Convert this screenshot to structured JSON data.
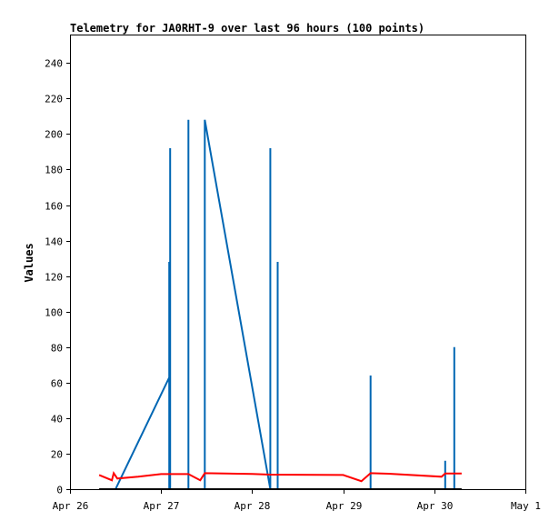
{
  "chart_data": {
    "type": "line",
    "title": "Telemetry for JA0RHT-9 over last 96 hours (100 points)",
    "xlabel": "",
    "ylabel": "Values",
    "ylim": [
      0,
      256
    ],
    "y_ticks": [
      0,
      20,
      40,
      60,
      80,
      100,
      120,
      140,
      160,
      180,
      200,
      220,
      240
    ],
    "x_ticks": [
      {
        "label": "Apr 26",
        "day": 0
      },
      {
        "label": "Apr 27",
        "day": 1
      },
      {
        "label": "Apr 28",
        "day": 2
      },
      {
        "label": "Apr 29",
        "day": 3
      },
      {
        "label": "Apr 30",
        "day": 4
      },
      {
        "label": "May 1",
        "day": 5
      }
    ],
    "xlim_days": [
      0,
      5
    ],
    "grid": false,
    "legend": "none",
    "series": [
      {
        "color": "#0066b3",
        "points": [
          [
            0.5,
            0
          ],
          [
            1.1,
            64
          ],
          [
            1.1,
            192
          ],
          [
            1.1,
            0
          ],
          [
            1.09,
            128
          ],
          [
            1.09,
            0
          ],
          [
            1.3,
            0
          ],
          [
            1.3,
            208
          ],
          [
            1.3,
            0
          ],
          [
            1.48,
            0
          ],
          [
            1.48,
            208
          ],
          [
            2.2,
            0
          ],
          [
            2.2,
            192
          ],
          [
            2.2,
            0
          ],
          [
            2.28,
            0
          ],
          [
            2.28,
            128
          ],
          [
            2.28,
            0
          ],
          [
            3.3,
            0
          ],
          [
            3.3,
            64
          ],
          [
            3.3,
            0
          ],
          [
            4.12,
            0
          ],
          [
            4.12,
            16
          ],
          [
            4.12,
            0
          ],
          [
            4.22,
            0
          ],
          [
            4.22,
            80
          ],
          [
            4.22,
            0
          ]
        ]
      },
      {
        "color": "#ff0000",
        "points": [
          [
            0.32,
            8
          ],
          [
            0.46,
            5
          ],
          [
            0.48,
            9
          ],
          [
            0.52,
            6
          ],
          [
            0.75,
            7
          ],
          [
            1.0,
            8.5
          ],
          [
            1.3,
            8.5
          ],
          [
            1.43,
            5
          ],
          [
            1.48,
            9
          ],
          [
            2.0,
            8.6
          ],
          [
            2.2,
            8.2
          ],
          [
            3.0,
            8.0
          ],
          [
            3.2,
            4.5
          ],
          [
            3.3,
            9
          ],
          [
            3.5,
            8.7
          ],
          [
            4.08,
            7
          ],
          [
            4.12,
            8.8
          ],
          [
            4.3,
            8.8
          ]
        ]
      },
      {
        "color": "#000000",
        "points": [
          [
            0.32,
            0
          ],
          [
            4.3,
            0
          ]
        ]
      }
    ]
  }
}
